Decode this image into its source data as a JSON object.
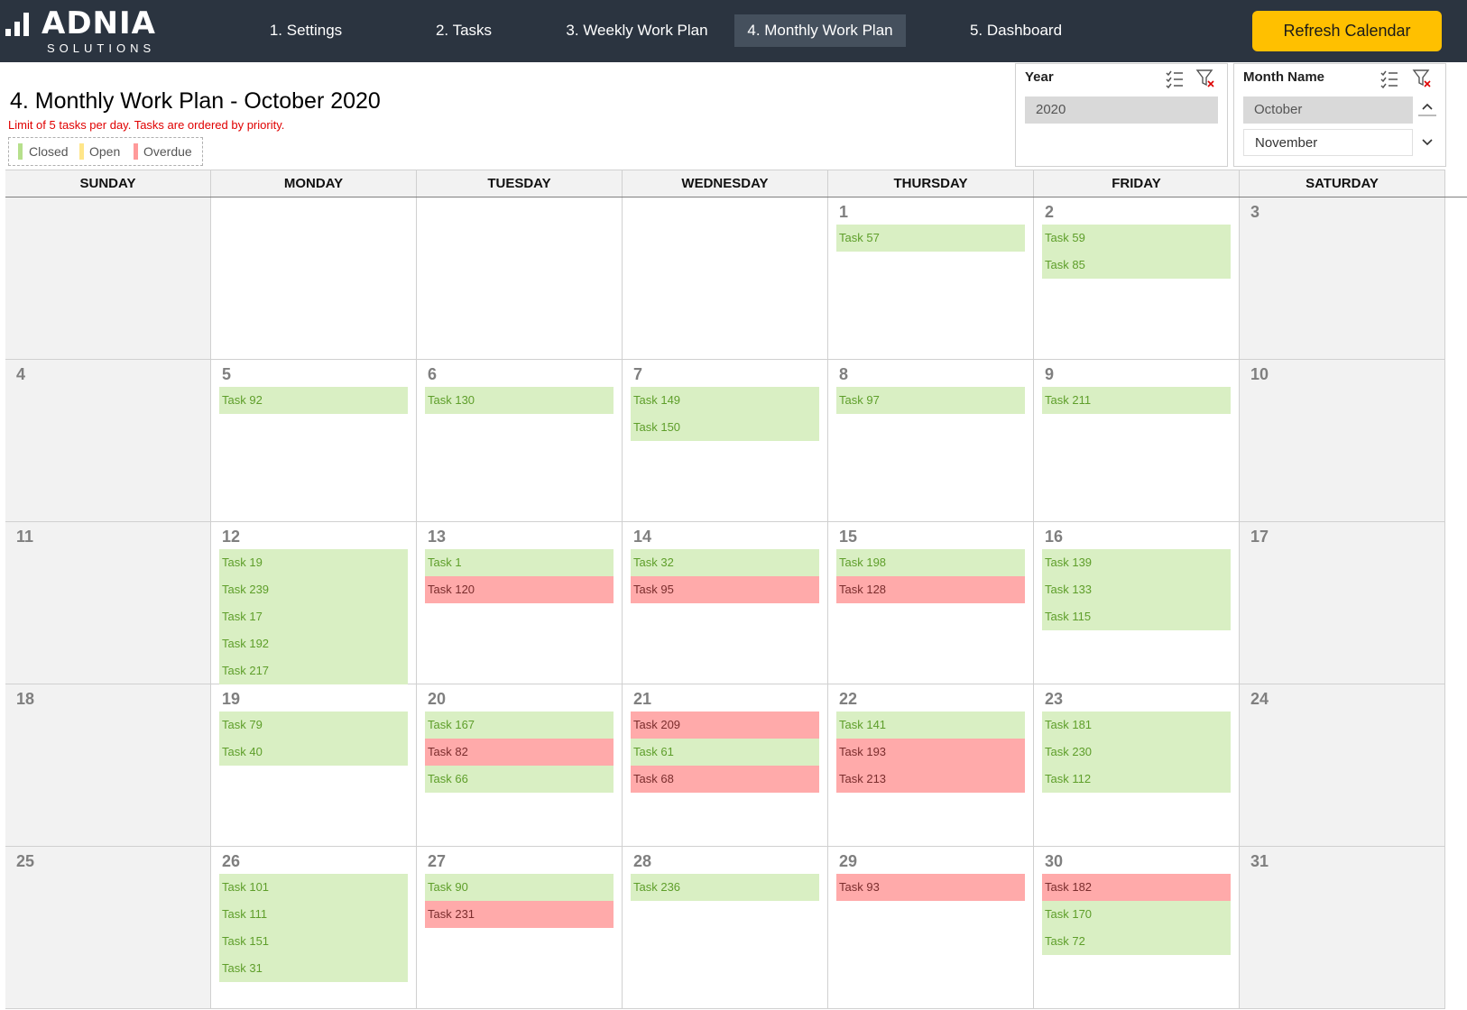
{
  "app": {
    "brand": "ADNIA",
    "brand_sub": "SOLUTIONS"
  },
  "nav": [
    {
      "label": "1. Settings",
      "active": false
    },
    {
      "label": "2. Tasks",
      "active": false
    },
    {
      "label": "3. Weekly Work Plan",
      "active": false
    },
    {
      "label": "4. Monthly Work Plan",
      "active": true
    },
    {
      "label": "5. Dashboard",
      "active": false
    }
  ],
  "refresh_label": "Refresh Calendar",
  "page": {
    "title": "4. Monthly Work Plan - October 2020",
    "note": "Limit of 5 tasks per day. Tasks are ordered by priority."
  },
  "legend": [
    {
      "label": "Closed",
      "color": "#b6e08c"
    },
    {
      "label": "Open",
      "color": "#ffe68a"
    },
    {
      "label": "Overdue",
      "color": "#ff9a9a"
    }
  ],
  "slicers": {
    "year": {
      "title": "Year",
      "items": [
        "2020"
      ],
      "selected": "2020"
    },
    "month": {
      "title": "Month Name",
      "items": [
        "October",
        "November"
      ],
      "selected": "October"
    }
  },
  "colors": {
    "closed": "#d9efc3",
    "overdue": "#ffaaaa",
    "open": "#fff2a8",
    "accent": "#ffc000",
    "topbar": "#2b3440"
  },
  "calendar": {
    "day_names": [
      "SUNDAY",
      "MONDAY",
      "TUESDAY",
      "WEDNESDAY",
      "THURSDAY",
      "FRIDAY",
      "SATURDAY"
    ],
    "weeks": [
      [
        {
          "day": "",
          "tasks": []
        },
        {
          "day": "",
          "tasks": []
        },
        {
          "day": "",
          "tasks": []
        },
        {
          "day": "",
          "tasks": []
        },
        {
          "day": "1",
          "tasks": [
            {
              "name": "Task 57",
              "status": "closed"
            }
          ]
        },
        {
          "day": "2",
          "tasks": [
            {
              "name": "Task 59",
              "status": "closed"
            },
            {
              "name": "Task 85",
              "status": "closed"
            }
          ]
        },
        {
          "day": "3",
          "tasks": []
        }
      ],
      [
        {
          "day": "4",
          "tasks": []
        },
        {
          "day": "5",
          "tasks": [
            {
              "name": "Task 92",
              "status": "closed"
            }
          ]
        },
        {
          "day": "6",
          "tasks": [
            {
              "name": "Task 130",
              "status": "closed"
            }
          ]
        },
        {
          "day": "7",
          "tasks": [
            {
              "name": "Task 149",
              "status": "closed"
            },
            {
              "name": "Task 150",
              "status": "closed"
            }
          ]
        },
        {
          "day": "8",
          "tasks": [
            {
              "name": "Task 97",
              "status": "closed"
            }
          ]
        },
        {
          "day": "9",
          "tasks": [
            {
              "name": "Task 211",
              "status": "closed"
            }
          ]
        },
        {
          "day": "10",
          "tasks": []
        }
      ],
      [
        {
          "day": "11",
          "tasks": []
        },
        {
          "day": "12",
          "tasks": [
            {
              "name": "Task 19",
              "status": "closed"
            },
            {
              "name": "Task 239",
              "status": "closed"
            },
            {
              "name": "Task 17",
              "status": "closed"
            },
            {
              "name": "Task 192",
              "status": "closed"
            },
            {
              "name": "Task 217",
              "status": "closed"
            }
          ]
        },
        {
          "day": "13",
          "tasks": [
            {
              "name": "Task 1",
              "status": "closed"
            },
            {
              "name": "Task 120",
              "status": "overdue"
            }
          ]
        },
        {
          "day": "14",
          "tasks": [
            {
              "name": "Task 32",
              "status": "closed"
            },
            {
              "name": "Task 95",
              "status": "overdue"
            }
          ]
        },
        {
          "day": "15",
          "tasks": [
            {
              "name": "Task 198",
              "status": "closed"
            },
            {
              "name": "Task 128",
              "status": "overdue"
            }
          ]
        },
        {
          "day": "16",
          "tasks": [
            {
              "name": "Task 139",
              "status": "closed"
            },
            {
              "name": "Task 133",
              "status": "closed"
            },
            {
              "name": "Task 115",
              "status": "closed"
            }
          ]
        },
        {
          "day": "17",
          "tasks": []
        }
      ],
      [
        {
          "day": "18",
          "tasks": []
        },
        {
          "day": "19",
          "tasks": [
            {
              "name": "Task 79",
              "status": "closed"
            },
            {
              "name": "Task 40",
              "status": "closed"
            }
          ]
        },
        {
          "day": "20",
          "tasks": [
            {
              "name": "Task 167",
              "status": "closed"
            },
            {
              "name": "Task 82",
              "status": "overdue"
            },
            {
              "name": "Task 66",
              "status": "closed"
            }
          ]
        },
        {
          "day": "21",
          "tasks": [
            {
              "name": "Task 209",
              "status": "overdue"
            },
            {
              "name": "Task 61",
              "status": "closed"
            },
            {
              "name": "Task 68",
              "status": "overdue"
            }
          ]
        },
        {
          "day": "22",
          "tasks": [
            {
              "name": "Task 141",
              "status": "closed"
            },
            {
              "name": "Task 193",
              "status": "overdue"
            },
            {
              "name": "Task 213",
              "status": "overdue"
            }
          ]
        },
        {
          "day": "23",
          "tasks": [
            {
              "name": "Task 181",
              "status": "closed"
            },
            {
              "name": "Task 230",
              "status": "closed"
            },
            {
              "name": "Task 112",
              "status": "closed"
            }
          ]
        },
        {
          "day": "24",
          "tasks": []
        }
      ],
      [
        {
          "day": "25",
          "tasks": []
        },
        {
          "day": "26",
          "tasks": [
            {
              "name": "Task 101",
              "status": "closed"
            },
            {
              "name": "Task 111",
              "status": "closed"
            },
            {
              "name": "Task 151",
              "status": "closed"
            },
            {
              "name": "Task 31",
              "status": "closed"
            }
          ]
        },
        {
          "day": "27",
          "tasks": [
            {
              "name": "Task 90",
              "status": "closed"
            },
            {
              "name": "Task 231",
              "status": "overdue"
            }
          ]
        },
        {
          "day": "28",
          "tasks": [
            {
              "name": "Task 236",
              "status": "closed"
            }
          ]
        },
        {
          "day": "29",
          "tasks": [
            {
              "name": "Task 93",
              "status": "overdue"
            }
          ]
        },
        {
          "day": "30",
          "tasks": [
            {
              "name": "Task 182",
              "status": "overdue"
            },
            {
              "name": "Task 170",
              "status": "closed"
            },
            {
              "name": "Task 72",
              "status": "closed"
            }
          ]
        },
        {
          "day": "31",
          "tasks": []
        }
      ]
    ]
  }
}
